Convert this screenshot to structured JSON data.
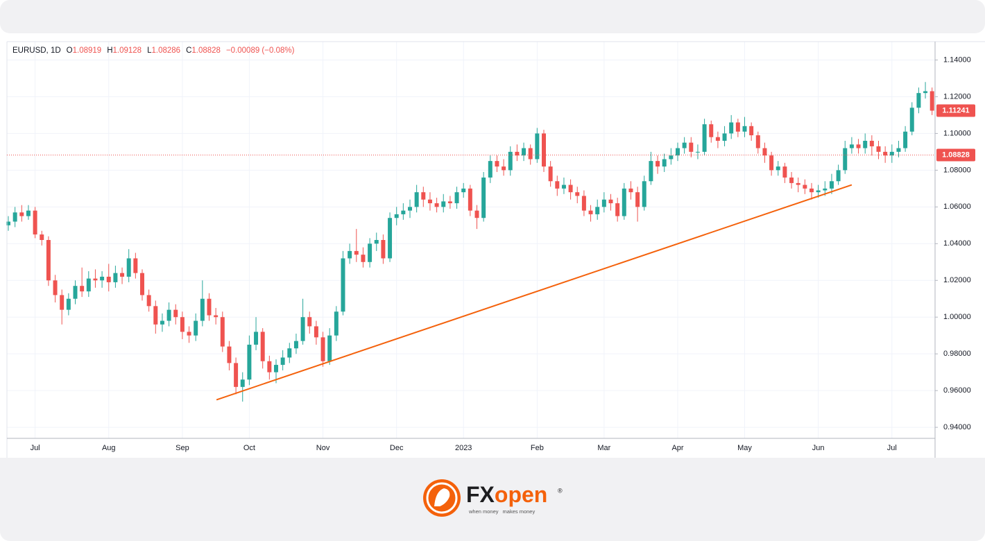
{
  "chart_data": {
    "type": "candlestick",
    "legend": {
      "symbol": "EURUSD, 1D",
      "labels": [
        "O",
        "H",
        "L",
        "C"
      ],
      "open": 1.08919,
      "high": 1.09128,
      "low": 1.08286,
      "close": 1.08828,
      "change": "−0.00089 (−0.08%)"
    },
    "categories": [
      null,
      null,
      null,
      null,
      "Jul",
      null,
      null,
      null,
      null,
      null,
      null,
      null,
      null,
      null,
      null,
      "Aug",
      null,
      null,
      null,
      null,
      null,
      null,
      null,
      null,
      null,
      null,
      "Sep",
      null,
      null,
      null,
      null,
      null,
      null,
      null,
      null,
      null,
      "Oct",
      null,
      null,
      null,
      null,
      null,
      null,
      null,
      null,
      null,
      null,
      "Nov",
      null,
      null,
      null,
      null,
      null,
      null,
      null,
      null,
      null,
      null,
      "Dec",
      null,
      null,
      null,
      null,
      null,
      null,
      null,
      null,
      null,
      "2023",
      null,
      null,
      null,
      null,
      null,
      null,
      null,
      null,
      null,
      null,
      "Feb",
      null,
      null,
      null,
      null,
      null,
      null,
      null,
      null,
      null,
      "Mar",
      null,
      null,
      null,
      null,
      null,
      null,
      null,
      null,
      null,
      null,
      "Apr",
      null,
      null,
      null,
      null,
      null,
      null,
      null,
      null,
      null,
      "May",
      null,
      null,
      null,
      null,
      null,
      null,
      null,
      null,
      null,
      null,
      "Jun",
      null,
      null,
      null,
      null,
      null,
      null,
      null,
      null,
      null,
      null,
      "Jul",
      null,
      null,
      null,
      null,
      null,
      null
    ],
    "open": [
      1.05,
      1.052,
      1.057,
      1.055,
      1.058,
      1.045,
      1.042,
      1.02,
      1.012,
      1.004,
      1.01,
      1.017,
      1.014,
      1.021,
      1.02,
      1.022,
      1.019,
      1.024,
      1.022,
      1.032,
      1.024,
      1.012,
      1.006,
      0.996,
      0.998,
      1.004,
      1.0,
      0.992,
      0.99,
      0.998,
      1.01,
      1.001,
      1.0,
      0.984,
      0.975,
      0.962,
      0.966,
      0.985,
      0.992,
      0.976,
      0.97,
      0.974,
      0.978,
      0.983,
      0.987,
      1.0,
      0.995,
      0.989,
      0.976,
      0.99,
      1.003,
      1.032,
      1.036,
      1.034,
      1.03,
      1.04,
      1.042,
      1.032,
      1.054,
      1.056,
      1.058,
      1.06,
      1.068,
      1.064,
      1.062,
      1.06,
      1.063,
      1.062,
      1.068,
      1.07,
      1.058,
      1.054,
      1.076,
      1.085,
      1.082,
      1.08,
      1.09,
      1.088,
      1.092,
      1.086,
      1.1,
      1.082,
      1.074,
      1.07,
      1.072,
      1.068,
      1.066,
      1.058,
      1.056,
      1.06,
      1.064,
      1.062,
      1.055,
      1.07,
      1.068,
      1.06,
      1.074,
      1.085,
      1.082,
      1.086,
      1.088,
      1.092,
      1.095,
      1.09,
      1.09,
      1.105,
      1.098,
      1.096,
      1.1,
      1.106,
      1.101,
      1.104,
      1.099,
      1.092,
      1.088,
      1.08,
      1.082,
      1.076,
      1.073,
      1.072,
      1.07,
      1.068,
      1.069,
      1.07,
      1.074,
      1.08,
      1.092,
      1.094,
      1.092,
      1.096,
      1.093,
      1.09,
      1.088,
      1.09,
      1.092,
      1.101,
      1.114,
      1.122,
      1.123
    ],
    "high": [
      1.055,
      1.06,
      1.061,
      1.061,
      1.06,
      1.047,
      1.044,
      1.023,
      1.015,
      1.013,
      1.02,
      1.027,
      1.025,
      1.026,
      1.025,
      1.029,
      1.028,
      1.027,
      1.037,
      1.035,
      1.026,
      1.015,
      1.009,
      1.002,
      1.008,
      1.007,
      1.003,
      0.995,
      1.002,
      1.02,
      1.013,
      1.005,
      1.003,
      0.987,
      0.978,
      0.97,
      0.99,
      1.0,
      0.994,
      0.979,
      0.977,
      0.982,
      0.986,
      0.991,
      1.01,
      1.003,
      0.998,
      0.992,
      0.994,
      1.006,
      1.036,
      1.04,
      1.048,
      1.038,
      1.043,
      1.046,
      1.045,
      1.057,
      1.06,
      1.062,
      1.064,
      1.072,
      1.071,
      1.068,
      1.065,
      1.067,
      1.066,
      1.071,
      1.073,
      1.072,
      1.061,
      1.079,
      1.088,
      1.088,
      1.086,
      1.093,
      1.094,
      1.095,
      1.094,
      1.103,
      1.102,
      1.085,
      1.077,
      1.076,
      1.075,
      1.071,
      1.069,
      1.061,
      1.064,
      1.068,
      1.067,
      1.065,
      1.073,
      1.074,
      1.071,
      1.077,
      1.09,
      1.088,
      1.089,
      1.092,
      1.095,
      1.098,
      1.098,
      1.094,
      1.108,
      1.107,
      1.101,
      1.104,
      1.11,
      1.108,
      1.109,
      1.106,
      1.101,
      1.095,
      1.09,
      1.085,
      1.084,
      1.079,
      1.076,
      1.075,
      1.073,
      1.072,
      1.074,
      1.078,
      1.083,
      1.096,
      1.098,
      1.097,
      1.1,
      1.099,
      1.096,
      1.093,
      1.094,
      1.096,
      1.104,
      1.117,
      1.125,
      1.128,
      1.125
    ],
    "low": [
      1.047,
      1.049,
      1.052,
      1.053,
      1.043,
      1.039,
      1.017,
      1.008,
      0.996,
      1.001,
      1.007,
      1.011,
      1.011,
      1.016,
      1.016,
      1.014,
      1.016,
      1.018,
      1.019,
      1.021,
      1.009,
      1.003,
      0.991,
      0.992,
      0.995,
      0.996,
      0.988,
      0.986,
      0.987,
      0.995,
      0.998,
      0.996,
      0.981,
      0.971,
      0.958,
      0.954,
      0.963,
      0.982,
      0.972,
      0.966,
      0.964,
      0.971,
      0.975,
      0.98,
      0.985,
      0.991,
      0.985,
      0.973,
      0.974,
      0.987,
      1.001,
      1.029,
      1.03,
      1.027,
      1.027,
      1.036,
      1.029,
      1.03,
      1.05,
      1.053,
      1.054,
      1.057,
      1.06,
      1.058,
      1.057,
      1.057,
      1.059,
      1.059,
      1.065,
      1.055,
      1.048,
      1.052,
      1.073,
      1.079,
      1.077,
      1.077,
      1.085,
      1.085,
      1.083,
      1.084,
      1.079,
      1.071,
      1.066,
      1.067,
      1.064,
      1.062,
      1.055,
      1.052,
      1.053,
      1.057,
      1.058,
      1.052,
      1.053,
      1.064,
      1.052,
      1.058,
      1.072,
      1.078,
      1.079,
      1.083,
      1.085,
      1.089,
      1.087,
      1.086,
      1.088,
      1.095,
      1.092,
      1.093,
      1.097,
      1.098,
      1.098,
      1.096,
      1.089,
      1.084,
      1.077,
      1.077,
      1.073,
      1.07,
      1.068,
      1.067,
      1.064,
      1.065,
      1.066,
      1.067,
      1.072,
      1.078,
      1.089,
      1.089,
      1.089,
      1.088,
      1.086,
      1.084,
      1.084,
      1.087,
      1.09,
      1.099,
      1.111,
      1.119,
      1.11
    ],
    "close": [
      1.052,
      1.057,
      1.055,
      1.058,
      1.045,
      1.042,
      1.02,
      1.012,
      1.004,
      1.01,
      1.017,
      1.014,
      1.021,
      1.02,
      1.022,
      1.019,
      1.024,
      1.022,
      1.032,
      1.024,
      1.012,
      1.006,
      0.996,
      0.998,
      1.004,
      1.0,
      0.992,
      0.99,
      0.998,
      1.01,
      1.001,
      1.0,
      0.984,
      0.975,
      0.962,
      0.966,
      0.985,
      0.992,
      0.976,
      0.97,
      0.974,
      0.978,
      0.983,
      0.987,
      1.0,
      0.995,
      0.989,
      0.976,
      0.99,
      1.003,
      1.032,
      1.036,
      1.034,
      1.03,
      1.04,
      1.042,
      1.032,
      1.054,
      1.056,
      1.058,
      1.06,
      1.068,
      1.064,
      1.062,
      1.06,
      1.063,
      1.062,
      1.068,
      1.07,
      1.058,
      1.054,
      1.076,
      1.085,
      1.082,
      1.08,
      1.09,
      1.088,
      1.092,
      1.086,
      1.1,
      1.082,
      1.074,
      1.07,
      1.072,
      1.068,
      1.066,
      1.058,
      1.056,
      1.06,
      1.064,
      1.062,
      1.055,
      1.07,
      1.068,
      1.06,
      1.074,
      1.085,
      1.082,
      1.086,
      1.088,
      1.092,
      1.095,
      1.09,
      1.09,
      1.105,
      1.098,
      1.096,
      1.1,
      1.106,
      1.101,
      1.104,
      1.099,
      1.092,
      1.088,
      1.08,
      1.082,
      1.076,
      1.073,
      1.072,
      1.07,
      1.068,
      1.069,
      1.07,
      1.074,
      1.08,
      1.092,
      1.094,
      1.092,
      1.096,
      1.093,
      1.09,
      1.088,
      1.09,
      1.092,
      1.101,
      1.114,
      1.122,
      1.123,
      1.11241
    ],
    "up_color": "#26a69a",
    "down_color": "#ef5350",
    "ylim": [
      0.934,
      1.15
    ],
    "yticks": [
      {
        "value": 0.94,
        "label": "0.94000"
      },
      {
        "value": 0.96,
        "label": "0.96000"
      },
      {
        "value": 0.98,
        "label": "0.98000"
      },
      {
        "value": 1.0,
        "label": "1.00000"
      },
      {
        "value": 1.02,
        "label": "1.02000"
      },
      {
        "value": 1.04,
        "label": "1.04000"
      },
      {
        "value": 1.06,
        "label": "1.06000"
      },
      {
        "value": 1.08,
        "label": "1.08000"
      },
      {
        "value": 1.1,
        "label": "1.10000"
      },
      {
        "value": 1.12,
        "label": "1.12000"
      },
      {
        "value": 1.14,
        "label": "1.14000"
      }
    ],
    "grid": true,
    "trendline": {
      "x": [
        31.1,
        126
      ],
      "y": [
        0.955,
        1.072
      ],
      "color": "#f4610b"
    }
  },
  "logo": {
    "brand_a": "FX",
    "brand_b": "open",
    "mark": "®",
    "tagline_a": "when money",
    "tagline_b": "makes money"
  }
}
